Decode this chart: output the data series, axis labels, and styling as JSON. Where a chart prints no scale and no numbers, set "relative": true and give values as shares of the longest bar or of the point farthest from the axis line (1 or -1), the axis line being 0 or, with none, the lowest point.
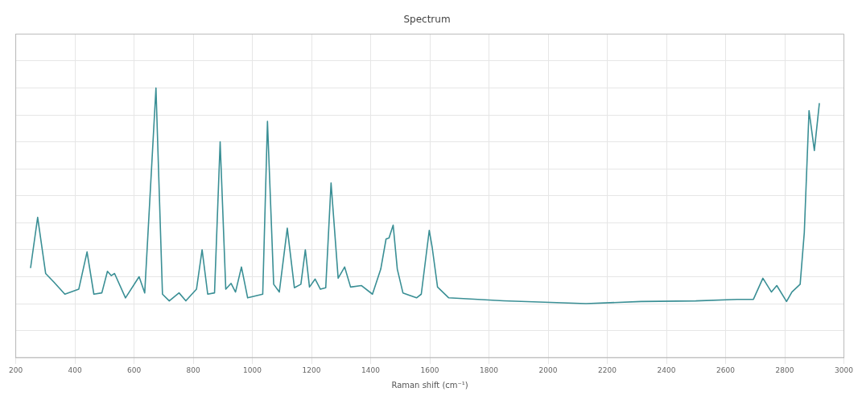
{
  "chart_data": {
    "type": "line",
    "title": "Spectrum",
    "xlabel": "Raman shift (cm⁻¹)",
    "relative": true,
    "xlim": [
      200,
      3000
    ],
    "xticks": [
      200,
      400,
      600,
      800,
      1000,
      1200,
      1400,
      1600,
      1800,
      2000,
      2200,
      2400,
      2600,
      2800,
      3000
    ],
    "grid": true,
    "legend": false,
    "tick_labels": "x",
    "marker": "none",
    "line_style": "solid",
    "series": [
      {
        "color": "#3a8f95",
        "x": [
          250,
          274,
          301,
          329,
          366,
          413,
          441,
          464,
          491,
          510,
          523,
          534,
          571,
          617,
          636,
          674,
          696,
          719,
          752,
          775,
          811,
          830,
          849,
          872,
          891,
          910,
          928,
          943,
          963,
          984,
          1035,
          1051,
          1072,
          1091,
          1118,
          1142,
          1164,
          1179,
          1193,
          1212,
          1230,
          1248,
          1266,
          1290,
          1312,
          1332,
          1369,
          1406,
          1434,
          1452,
          1462,
          1476,
          1490,
          1509,
          1555,
          1571,
          1598,
          1608,
          1626,
          1664,
          1849,
          2128,
          2314,
          2499,
          2639,
          2694,
          2726,
          2755,
          2773,
          2806,
          2824,
          2852,
          2866,
          2882,
          2900,
          2917
        ],
        "values": [
          0.165,
          0.4,
          0.14,
          0.1,
          0.044,
          0.067,
          0.24,
          0.044,
          0.05,
          0.15,
          0.13,
          0.14,
          0.027,
          0.125,
          0.05,
          1.0,
          0.044,
          0.013,
          0.05,
          0.013,
          0.067,
          0.25,
          0.044,
          0.05,
          0.75,
          0.067,
          0.094,
          0.054,
          0.17,
          0.027,
          0.044,
          0.845,
          0.09,
          0.054,
          0.35,
          0.074,
          0.09,
          0.25,
          0.077,
          0.114,
          0.067,
          0.074,
          0.56,
          0.118,
          0.17,
          0.077,
          0.084,
          0.044,
          0.16,
          0.3,
          0.305,
          0.364,
          0.16,
          0.05,
          0.027,
          0.044,
          0.34,
          0.26,
          0.077,
          0.027,
          0.013,
          0,
          0.01,
          0.013,
          0.02,
          0.02,
          0.118,
          0.054,
          0.084,
          0.01,
          0.054,
          0.09,
          0.33,
          0.895,
          0.71,
          0.93
        ]
      }
    ]
  }
}
